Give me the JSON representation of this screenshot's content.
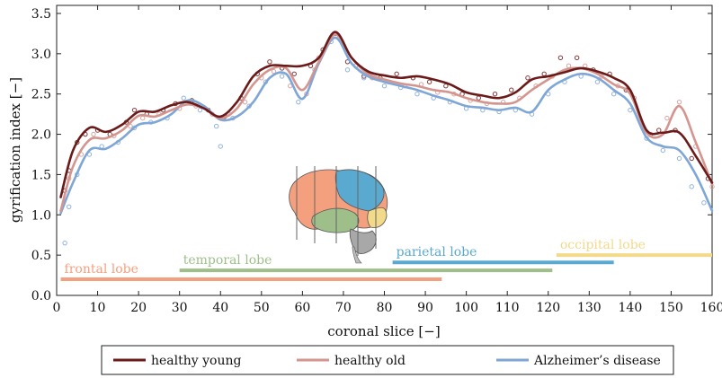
{
  "chart_data": {
    "type": "line",
    "xlabel": "coronal slice [−]",
    "ylabel": "gyrification index [−]",
    "xlim": [
      0,
      160
    ],
    "ylim": [
      0,
      3.6
    ],
    "x_ticks": [
      0,
      10,
      20,
      30,
      40,
      50,
      60,
      70,
      80,
      90,
      100,
      110,
      120,
      130,
      140,
      150,
      160
    ],
    "y_ticks": [
      0.0,
      0.5,
      1.0,
      1.5,
      2.0,
      2.5,
      3.0,
      3.5
    ],
    "x_tick_labels": [
      "0",
      "10",
      "20",
      "30",
      "40",
      "50",
      "60",
      "70",
      "80",
      "90",
      "100",
      "110",
      "120",
      "130",
      "140",
      "150",
      "160"
    ],
    "y_tick_labels": [
      "0.0",
      "0.5",
      "1.0",
      "1.5",
      "2.0",
      "2.5",
      "3.0",
      "3.5"
    ],
    "legend_position": "bottom",
    "colors": {
      "young": "#6b1a1a",
      "old": "#d4958f",
      "ad": "#7ea6d6"
    },
    "series": [
      {
        "key": "young",
        "name": "healthy young",
        "color": "#6b1a1a",
        "x": [
          1,
          4,
          8,
          12,
          16,
          20,
          24,
          28,
          32,
          36,
          40,
          44,
          48,
          52,
          56,
          60,
          64,
          68,
          72,
          76,
          80,
          84,
          88,
          92,
          96,
          100,
          104,
          108,
          112,
          116,
          120,
          124,
          128,
          132,
          136,
          140,
          144,
          148,
          152,
          156,
          160
        ],
        "y": [
          1.22,
          1.8,
          2.08,
          2.03,
          2.12,
          2.28,
          2.28,
          2.36,
          2.4,
          2.32,
          2.22,
          2.4,
          2.72,
          2.85,
          2.85,
          2.85,
          2.95,
          3.27,
          2.95,
          2.78,
          2.73,
          2.7,
          2.72,
          2.68,
          2.62,
          2.52,
          2.48,
          2.45,
          2.52,
          2.68,
          2.72,
          2.77,
          2.82,
          2.78,
          2.7,
          2.55,
          2.05,
          2.02,
          2.02,
          1.73,
          1.4
        ]
      },
      {
        "key": "old",
        "name": "healthy old",
        "color": "#d4958f",
        "x": [
          1,
          4,
          8,
          12,
          16,
          20,
          24,
          28,
          32,
          36,
          40,
          44,
          48,
          52,
          56,
          60,
          64,
          68,
          72,
          76,
          80,
          84,
          88,
          92,
          96,
          100,
          104,
          108,
          112,
          116,
          120,
          124,
          128,
          132,
          136,
          140,
          144,
          148,
          152,
          156,
          160
        ],
        "y": [
          1.05,
          1.6,
          1.93,
          1.95,
          2.05,
          2.23,
          2.22,
          2.3,
          2.37,
          2.32,
          2.2,
          2.32,
          2.62,
          2.8,
          2.82,
          2.55,
          2.9,
          3.24,
          2.95,
          2.75,
          2.68,
          2.63,
          2.6,
          2.55,
          2.52,
          2.45,
          2.4,
          2.38,
          2.4,
          2.55,
          2.68,
          2.8,
          2.82,
          2.75,
          2.62,
          2.5,
          2.02,
          2.0,
          2.35,
          1.9,
          1.38
        ]
      },
      {
        "key": "ad",
        "name": "Alzheimer’s disease",
        "color": "#7ea6d6",
        "x": [
          1,
          4,
          8,
          12,
          16,
          20,
          24,
          28,
          32,
          36,
          40,
          44,
          48,
          52,
          56,
          60,
          64,
          68,
          72,
          76,
          80,
          84,
          88,
          92,
          96,
          100,
          104,
          108,
          112,
          116,
          120,
          124,
          128,
          132,
          136,
          140,
          144,
          148,
          152,
          156,
          160
        ],
        "y": [
          1.02,
          1.4,
          1.8,
          1.82,
          1.95,
          2.12,
          2.15,
          2.25,
          2.42,
          2.35,
          2.18,
          2.22,
          2.4,
          2.7,
          2.75,
          2.44,
          2.88,
          3.2,
          2.88,
          2.72,
          2.65,
          2.6,
          2.55,
          2.48,
          2.42,
          2.35,
          2.33,
          2.3,
          2.33,
          2.28,
          2.55,
          2.68,
          2.75,
          2.7,
          2.55,
          2.38,
          1.96,
          1.85,
          1.8,
          1.5,
          1.05
        ]
      }
    ],
    "scatter": [
      {
        "color": "#6b1a1a",
        "points": [
          [
            2,
            1.3
          ],
          [
            3,
            1.55
          ],
          [
            5,
            1.9
          ],
          [
            7,
            2.0
          ],
          [
            10,
            2.05
          ],
          [
            13,
            2.0
          ],
          [
            17,
            2.15
          ],
          [
            19,
            2.3
          ],
          [
            22,
            2.25
          ],
          [
            26,
            2.3
          ],
          [
            29,
            2.38
          ],
          [
            33,
            2.42
          ],
          [
            37,
            2.3
          ],
          [
            41,
            2.22
          ],
          [
            45,
            2.45
          ],
          [
            49,
            2.75
          ],
          [
            52,
            2.9
          ],
          [
            55,
            2.82
          ],
          [
            58,
            2.75
          ],
          [
            62,
            2.85
          ],
          [
            65,
            3.05
          ],
          [
            68,
            3.25
          ],
          [
            71,
            2.9
          ],
          [
            75,
            2.72
          ],
          [
            79,
            2.7
          ],
          [
            83,
            2.75
          ],
          [
            87,
            2.7
          ],
          [
            91,
            2.65
          ],
          [
            95,
            2.6
          ],
          [
            99,
            2.5
          ],
          [
            103,
            2.45
          ],
          [
            107,
            2.5
          ],
          [
            111,
            2.55
          ],
          [
            115,
            2.7
          ],
          [
            119,
            2.75
          ],
          [
            123,
            2.95
          ],
          [
            127,
            2.95
          ],
          [
            131,
            2.8
          ],
          [
            135,
            2.75
          ],
          [
            139,
            2.55
          ],
          [
            143,
            2.1
          ],
          [
            147,
            2.05
          ],
          [
            151,
            2.05
          ],
          [
            155,
            1.7
          ],
          [
            159,
            1.45
          ]
        ]
      },
      {
        "color": "#d4958f",
        "points": [
          [
            3,
            1.45
          ],
          [
            6,
            1.75
          ],
          [
            9,
            2.0
          ],
          [
            14,
            1.98
          ],
          [
            18,
            2.1
          ],
          [
            21,
            2.2
          ],
          [
            25,
            2.25
          ],
          [
            30,
            2.32
          ],
          [
            34,
            2.35
          ],
          [
            38,
            2.25
          ],
          [
            42,
            2.25
          ],
          [
            46,
            2.4
          ],
          [
            50,
            2.7
          ],
          [
            53,
            2.78
          ],
          [
            57,
            2.6
          ],
          [
            61,
            2.5
          ],
          [
            64,
            2.95
          ],
          [
            69,
            3.2
          ],
          [
            73,
            2.85
          ],
          [
            77,
            2.7
          ],
          [
            81,
            2.65
          ],
          [
            85,
            2.6
          ],
          [
            89,
            2.62
          ],
          [
            93,
            2.52
          ],
          [
            97,
            2.5
          ],
          [
            101,
            2.42
          ],
          [
            105,
            2.38
          ],
          [
            109,
            2.4
          ],
          [
            113,
            2.45
          ],
          [
            117,
            2.6
          ],
          [
            121,
            2.72
          ],
          [
            125,
            2.85
          ],
          [
            129,
            2.85
          ],
          [
            133,
            2.72
          ],
          [
            137,
            2.6
          ],
          [
            141,
            2.45
          ],
          [
            145,
            2.0
          ],
          [
            149,
            2.2
          ],
          [
            152,
            2.4
          ],
          [
            156,
            1.85
          ],
          [
            160,
            1.35
          ]
        ]
      },
      {
        "color": "#7ea6d6",
        "points": [
          [
            2,
            0.65
          ],
          [
            3,
            1.1
          ],
          [
            5,
            1.5
          ],
          [
            8,
            1.75
          ],
          [
            11,
            1.85
          ],
          [
            15,
            1.9
          ],
          [
            19,
            2.08
          ],
          [
            23,
            2.15
          ],
          [
            27,
            2.2
          ],
          [
            31,
            2.45
          ],
          [
            35,
            2.3
          ],
          [
            39,
            2.1
          ],
          [
            40,
            1.85
          ],
          [
            43,
            2.2
          ],
          [
            47,
            2.35
          ],
          [
            51,
            2.65
          ],
          [
            55,
            2.72
          ],
          [
            59,
            2.4
          ],
          [
            63,
            2.8
          ],
          [
            67,
            3.15
          ],
          [
            71,
            2.8
          ],
          [
            75,
            2.7
          ],
          [
            80,
            2.6
          ],
          [
            84,
            2.58
          ],
          [
            88,
            2.5
          ],
          [
            92,
            2.45
          ],
          [
            96,
            2.4
          ],
          [
            100,
            2.32
          ],
          [
            104,
            2.3
          ],
          [
            108,
            2.28
          ],
          [
            112,
            2.3
          ],
          [
            116,
            2.25
          ],
          [
            120,
            2.5
          ],
          [
            124,
            2.65
          ],
          [
            128,
            2.72
          ],
          [
            132,
            2.65
          ],
          [
            136,
            2.5
          ],
          [
            140,
            2.3
          ],
          [
            144,
            1.95
          ],
          [
            148,
            1.8
          ],
          [
            152,
            1.7
          ],
          [
            155,
            1.35
          ],
          [
            158,
            1.15
          ]
        ]
      }
    ],
    "annotations": [
      {
        "key": "frontal",
        "label": "frontal lobe",
        "color": "#f4a07e",
        "x_start": 1,
        "x_end": 94,
        "y": 0.2
      },
      {
        "key": "temporal",
        "label": "temporal lobe",
        "color": "#9fbf8a",
        "x_start": 30,
        "x_end": 121,
        "y": 0.31
      },
      {
        "key": "parietal",
        "label": "parietal lobe",
        "color": "#5aa9d0",
        "x_start": 82,
        "x_end": 136,
        "y": 0.41
      },
      {
        "key": "occipital",
        "label": "occipital lobe",
        "color": "#f3d98a",
        "x_start": 122,
        "x_end": 160,
        "y": 0.5
      }
    ]
  }
}
